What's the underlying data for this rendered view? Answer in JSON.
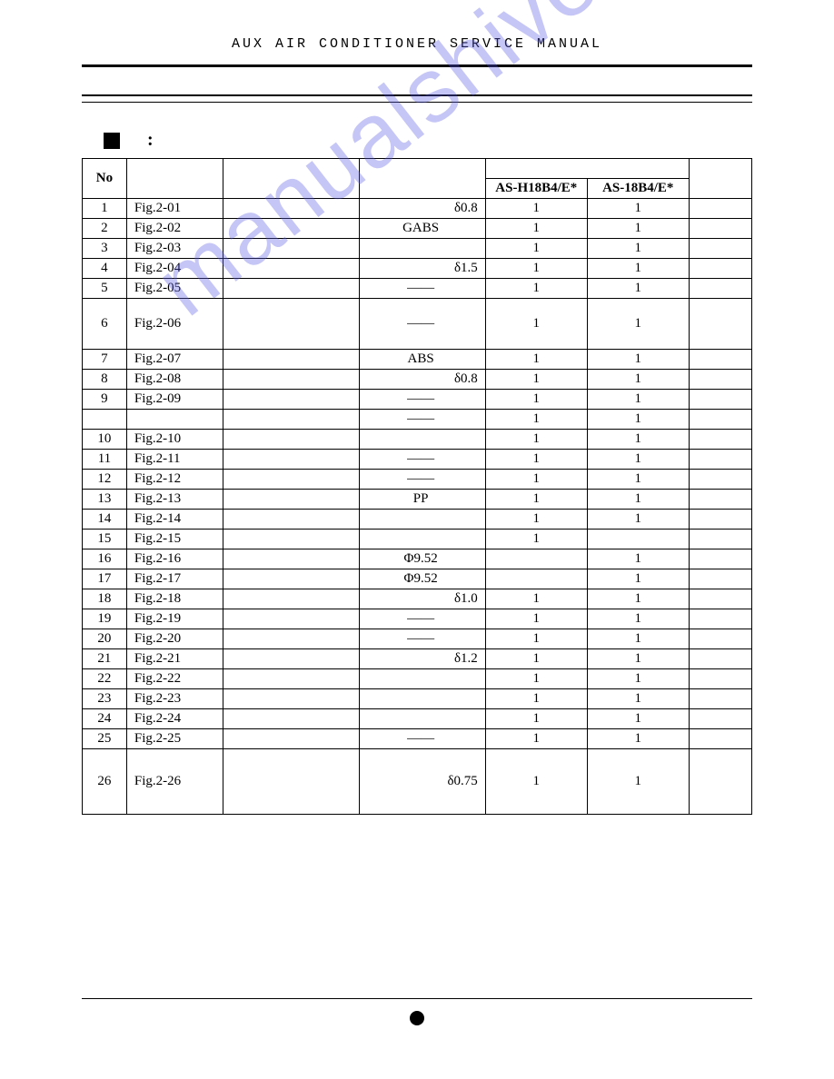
{
  "header": {
    "title": "AUX AIR CONDITIONER SERVICE MANUAL"
  },
  "watermark": "manualshive.com",
  "table": {
    "headers": {
      "no": "No",
      "model1": "AS-H18B4/E*",
      "model2": "AS-18B4/E*"
    },
    "rows": [
      {
        "no": "1",
        "fig": "Fig.2-01",
        "spec": "δ0.8",
        "spec_align": "right",
        "q1": "1",
        "q2": "1",
        "h": ""
      },
      {
        "no": "2",
        "fig": "Fig.2-02",
        "spec": "GABS",
        "spec_align": "center",
        "q1": "1",
        "q2": "1",
        "h": ""
      },
      {
        "no": "3",
        "fig": "Fig.2-03",
        "spec": "",
        "spec_align": "right",
        "q1": "1",
        "q2": "1",
        "h": ""
      },
      {
        "no": "4",
        "fig": "Fig.2-04",
        "spec": "δ1.5",
        "spec_align": "right",
        "q1": "1",
        "q2": "1",
        "h": ""
      },
      {
        "no": "5",
        "fig": "Fig.2-05",
        "spec": "——",
        "spec_align": "center",
        "q1": "1",
        "q2": "1",
        "h": ""
      },
      {
        "no": "6",
        "fig": "Fig.2-06",
        "spec": "——",
        "spec_align": "center",
        "q1": "1",
        "q2": "1",
        "h": "tall"
      },
      {
        "no": "7",
        "fig": "Fig.2-07",
        "spec": "ABS",
        "spec_align": "center",
        "q1": "1",
        "q2": "1",
        "h": ""
      },
      {
        "no": "8",
        "fig": "Fig.2-08",
        "spec": "δ0.8",
        "spec_align": "right",
        "q1": "1",
        "q2": "1",
        "h": ""
      },
      {
        "no": "9",
        "fig": "Fig.2-09",
        "spec": "——",
        "spec_align": "center",
        "q1": "1",
        "q2": "1",
        "h": ""
      },
      {
        "no": "",
        "fig": "",
        "spec": "——",
        "spec_align": "center",
        "q1": "1",
        "q2": "1",
        "h": ""
      },
      {
        "no": "10",
        "fig": "Fig.2-10",
        "spec": "",
        "spec_align": "right",
        "q1": "1",
        "q2": "1",
        "h": ""
      },
      {
        "no": "11",
        "fig": "Fig.2-11",
        "spec": "——",
        "spec_align": "center",
        "q1": "1",
        "q2": "1",
        "h": ""
      },
      {
        "no": "12",
        "fig": "Fig.2-12",
        "spec": "——",
        "spec_align": "center",
        "q1": "1",
        "q2": "1",
        "h": ""
      },
      {
        "no": "13",
        "fig": "Fig.2-13",
        "spec": "PP",
        "spec_align": "center",
        "q1": "1",
        "q2": "1",
        "h": ""
      },
      {
        "no": "14",
        "fig": "Fig.2-14",
        "spec": "",
        "spec_align": "right",
        "q1": "1",
        "q2": "1",
        "h": ""
      },
      {
        "no": "15",
        "fig": "Fig.2-15",
        "spec": "",
        "spec_align": "right",
        "q1": "1",
        "q2": "",
        "h": ""
      },
      {
        "no": "16",
        "fig": "Fig.2-16",
        "spec": "Φ9.52",
        "spec_align": "center",
        "q1": "",
        "q2": "1",
        "h": ""
      },
      {
        "no": "17",
        "fig": "Fig.2-17",
        "spec": "Φ9.52",
        "spec_align": "center",
        "q1": "",
        "q2": "1",
        "h": ""
      },
      {
        "no": "18",
        "fig": "Fig.2-18",
        "spec": "δ1.0",
        "spec_align": "right",
        "q1": "1",
        "q2": "1",
        "h": ""
      },
      {
        "no": "19",
        "fig": "Fig.2-19",
        "spec": "——",
        "spec_align": "center",
        "q1": "1",
        "q2": "1",
        "h": ""
      },
      {
        "no": "20",
        "fig": "Fig.2-20",
        "spec": "——",
        "spec_align": "center",
        "q1": "1",
        "q2": "1",
        "h": ""
      },
      {
        "no": "21",
        "fig": "Fig.2-21",
        "spec": "δ1.2",
        "spec_align": "right",
        "q1": "1",
        "q2": "1",
        "h": ""
      },
      {
        "no": "22",
        "fig": "Fig.2-22",
        "spec": "",
        "spec_align": "right",
        "q1": "1",
        "q2": "1",
        "h": ""
      },
      {
        "no": "23",
        "fig": "Fig.2-23",
        "spec": "",
        "spec_align": "right",
        "q1": "1",
        "q2": "1",
        "h": ""
      },
      {
        "no": "24",
        "fig": "Fig.2-24",
        "spec": "",
        "spec_align": "right",
        "q1": "1",
        "q2": "1",
        "h": ""
      },
      {
        "no": "25",
        "fig": "Fig.2-25",
        "spec": "——",
        "spec_align": "center",
        "q1": "1",
        "q2": "1",
        "h": ""
      },
      {
        "no": "26",
        "fig": "Fig.2-26",
        "spec": "δ0.75",
        "spec_align": "right",
        "q1": "1",
        "q2": "1",
        "h": "taller"
      }
    ]
  },
  "colors": {
    "text": "#000000",
    "background": "#ffffff",
    "watermark": "rgba(90,90,230,0.35)"
  }
}
